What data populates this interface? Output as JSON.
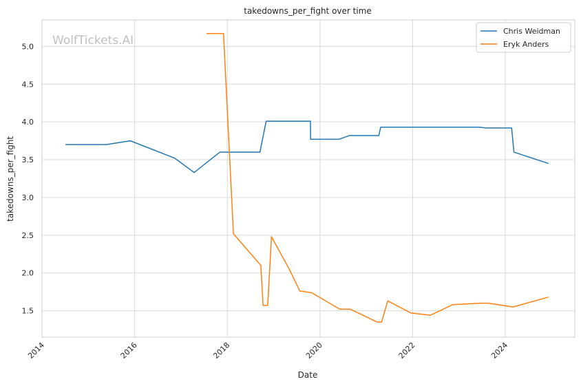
{
  "chart_data": {
    "type": "line",
    "title": "takedowns_per_fight over time",
    "xlabel": "Date",
    "ylabel": "takedowns_per_fight",
    "watermark": "WolfTickets.AI",
    "x_ticks": [
      "2014",
      "2016",
      "2018",
      "2020",
      "2022",
      "2024"
    ],
    "y_ticks": [
      "1.5",
      "2.0",
      "2.5",
      "3.0",
      "3.5",
      "4.0",
      "4.5",
      "5.0"
    ],
    "xlim": [
      2014.0,
      2025.5
    ],
    "ylim": [
      1.15,
      5.35
    ],
    "grid": true,
    "legend_position": "top-right",
    "colors": {
      "Chris Weidman": "#1f77b4",
      "Eryk Anders": "#ff7f0e"
    },
    "series": [
      {
        "name": "Chris Weidman",
        "color": "#1f77b4",
        "points": [
          [
            "2014-07-05",
            3.7
          ],
          [
            "2015-05-23",
            3.7
          ],
          [
            "2015-11-28",
            3.75
          ],
          [
            "2016-11-12",
            3.52
          ],
          [
            "2017-04-15",
            3.33
          ],
          [
            "2017-07-29",
            3.47
          ],
          [
            "2017-11-04",
            3.6
          ],
          [
            "2018-09-15",
            3.6
          ],
          [
            "2018-11-03",
            4.01
          ],
          [
            "2019-10-18",
            4.01
          ],
          [
            "2019-10-19",
            3.77
          ],
          [
            "2020-05-29",
            3.77
          ],
          [
            "2020-08-22",
            3.82
          ],
          [
            "2021-04-10",
            3.82
          ],
          [
            "2021-04-24",
            3.93
          ],
          [
            "2023-06-10",
            3.93
          ],
          [
            "2023-08-05",
            3.92
          ],
          [
            "2024-02-20",
            3.92
          ],
          [
            "2024-03-09",
            3.6
          ],
          [
            "2024-12-07",
            3.45
          ]
        ]
      },
      {
        "name": "Eryk Anders",
        "color": "#ff7f0e",
        "points": [
          [
            "2017-07-22",
            5.17
          ],
          [
            "2017-12-02",
            5.17
          ],
          [
            "2018-02-18",
            2.52
          ],
          [
            "2018-09-22",
            2.1
          ],
          [
            "2018-10-10",
            1.57
          ],
          [
            "2018-11-15",
            1.57
          ],
          [
            "2018-12-15",
            2.48
          ],
          [
            "2019-05-04",
            2.05
          ],
          [
            "2019-07-27",
            1.76
          ],
          [
            "2019-10-26",
            1.74
          ],
          [
            "2020-06-06",
            1.52
          ],
          [
            "2020-08-29",
            1.52
          ],
          [
            "2021-03-27",
            1.35
          ],
          [
            "2021-05-01",
            1.35
          ],
          [
            "2021-06-19",
            1.63
          ],
          [
            "2021-12-18",
            1.47
          ],
          [
            "2022-05-21",
            1.44
          ],
          [
            "2022-11-12",
            1.58
          ],
          [
            "2023-06-24",
            1.6
          ],
          [
            "2023-08-19",
            1.6
          ],
          [
            "2024-03-02",
            1.55
          ],
          [
            "2024-12-07",
            1.68
          ]
        ]
      }
    ]
  }
}
